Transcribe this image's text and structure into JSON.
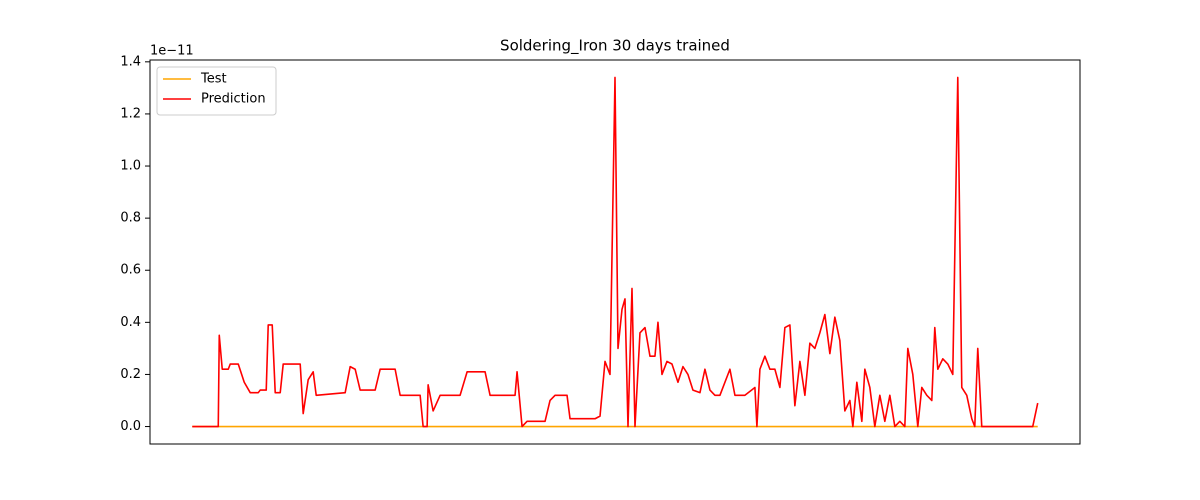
{
  "chart_data": {
    "type": "line",
    "title": "Soldering_Iron 30 days trained",
    "y_offset_label": "1e−11",
    "xlim": [
      -42.3,
      888.3
    ],
    "ylim": [
      -0.067,
      1.407
    ],
    "yticks": [
      {
        "value": 0,
        "label": "0.0"
      },
      0.2,
      0.4,
      0.6,
      0.8,
      {
        "value": 1,
        "label": "1.0"
      },
      1.2,
      1.4
    ],
    "legend": "upper left",
    "series": [
      {
        "name": "Test",
        "color": "#ffa500",
        "x": [
          0,
          846
        ],
        "values": [
          0,
          0
        ]
      },
      {
        "name": "Prediction",
        "color": "#ff0000",
        "x": [
          0,
          26,
          27,
          30,
          36,
          38,
          46,
          52,
          58,
          66,
          68,
          74,
          76,
          80,
          83,
          88,
          91,
          108,
          111,
          116,
          121,
          124,
          153,
          158,
          163,
          168,
          183,
          188,
          203,
          208,
          228,
          231,
          235,
          236,
          241,
          248,
          268,
          275,
          293,
          298,
          323,
          325,
          330,
          335,
          353,
          358,
          363,
          375,
          378,
          403,
          408,
          413,
          418,
          423,
          426,
          430,
          433,
          436,
          440,
          443,
          448,
          453,
          458,
          463,
          466,
          470,
          475,
          480,
          486,
          491,
          496,
          501,
          508,
          513,
          518,
          523,
          528,
          538,
          543,
          553,
          563,
          565,
          568,
          573,
          578,
          583,
          588,
          593,
          598,
          603,
          608,
          613,
          618,
          623,
          628,
          633,
          638,
          643,
          648,
          653,
          658,
          661,
          665,
          670,
          673,
          678,
          683,
          688,
          693,
          698,
          703,
          708,
          713,
          716,
          721,
          726,
          730,
          735,
          740,
          743,
          746,
          751,
          756,
          761,
          766,
          770,
          775,
          780,
          783,
          786,
          790,
          841,
          846
        ],
        "values": [
          0,
          0,
          0.35,
          0.22,
          0.22,
          0.24,
          0.24,
          0.17,
          0.13,
          0.13,
          0.14,
          0.14,
          0.39,
          0.39,
          0.13,
          0.13,
          0.24,
          0.24,
          0.05,
          0.18,
          0.21,
          0.12,
          0.13,
          0.23,
          0.22,
          0.14,
          0.14,
          0.22,
          0.22,
          0.12,
          0.12,
          0,
          0,
          0.16,
          0.06,
          0.12,
          0.12,
          0.21,
          0.21,
          0.12,
          0.12,
          0.21,
          0,
          0.02,
          0.02,
          0.1,
          0.12,
          0.12,
          0.03,
          0.03,
          0.04,
          0.25,
          0.2,
          1.34,
          0.3,
          0.45,
          0.49,
          0,
          0.53,
          0,
          0.36,
          0.38,
          0.27,
          0.27,
          0.4,
          0.2,
          0.25,
          0.24,
          0.17,
          0.23,
          0.2,
          0.14,
          0.13,
          0.22,
          0.14,
          0.12,
          0.12,
          0.22,
          0.12,
          0.12,
          0.15,
          0,
          0.22,
          0.27,
          0.22,
          0.22,
          0.15,
          0.38,
          0.39,
          0.08,
          0.25,
          0.12,
          0.32,
          0.3,
          0.36,
          0.43,
          0.28,
          0.42,
          0.33,
          0.06,
          0.1,
          0,
          0.17,
          0.02,
          0.22,
          0.15,
          0,
          0.12,
          0.02,
          0.12,
          0,
          0.02,
          0,
          0.3,
          0.2,
          0,
          0.15,
          0.12,
          0.1,
          0.38,
          0.22,
          0.26,
          0.24,
          0.2,
          1.34,
          0.15,
          0.12,
          0.03,
          0,
          0.3,
          0,
          0,
          0.09
        ]
      }
    ]
  }
}
